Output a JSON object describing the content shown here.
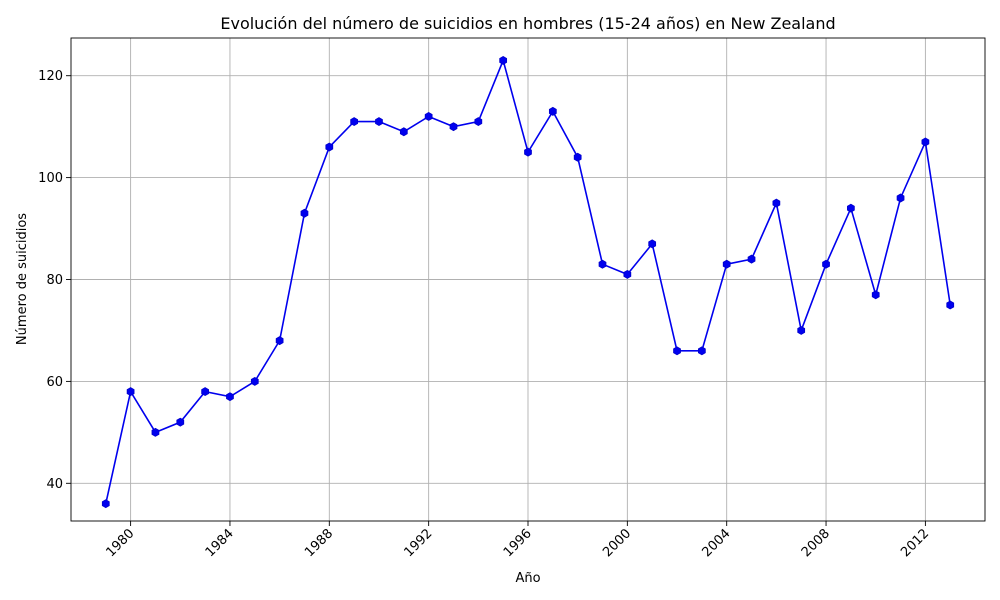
{
  "chart_data": {
    "type": "line",
    "title": "Evolución del número de suicidios en hombres (15-24 años) en New Zealand",
    "xlabel": "Año",
    "ylabel": "Número de suicidios",
    "xlim": [
      1977.6,
      2014.4
    ],
    "ylim": [
      32.6,
      127.4
    ],
    "xticks": [
      1980,
      1984,
      1988,
      1992,
      1996,
      2000,
      2004,
      2008,
      2012
    ],
    "yticks": [
      40,
      60,
      80,
      100,
      120
    ],
    "grid": true,
    "color": "#0000ee",
    "marker": "hexagon",
    "x": [
      1979,
      1980,
      1981,
      1982,
      1983,
      1984,
      1985,
      1986,
      1987,
      1988,
      1989,
      1990,
      1991,
      1992,
      1993,
      1994,
      1995,
      1996,
      1997,
      1998,
      1999,
      2000,
      2001,
      2002,
      2003,
      2004,
      2005,
      2006,
      2007,
      2008,
      2009,
      2010,
      2011,
      2012,
      2013
    ],
    "values": [
      36,
      58,
      50,
      52,
      58,
      57,
      60,
      68,
      93,
      106,
      111,
      111,
      109,
      112,
      110,
      111,
      123,
      105,
      113,
      104,
      83,
      81,
      87,
      66,
      66,
      83,
      84,
      95,
      70,
      83,
      94,
      77,
      96,
      107,
      75
    ]
  }
}
